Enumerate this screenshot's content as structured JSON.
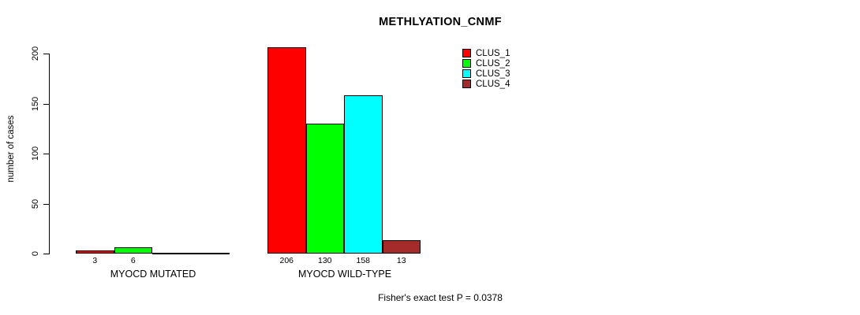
{
  "chart_data": {
    "type": "bar",
    "title": "METHLYATION_CNMF",
    "ylabel": "number of cases",
    "xlabel": "",
    "ylim": [
      0,
      200
    ],
    "yticks": [
      0,
      50,
      100,
      150,
      200
    ],
    "grid": false,
    "legend_position": "top-right",
    "groups": [
      "MYOCD MUTATED",
      "MYOCD WILD-TYPE"
    ],
    "series": [
      {
        "name": "CLUS_1",
        "color": "#ff0000",
        "values": [
          3,
          206
        ]
      },
      {
        "name": "CLUS_2",
        "color": "#00ff00",
        "values": [
          6,
          130
        ]
      },
      {
        "name": "CLUS_3",
        "color": "#00ffff",
        "values": [
          0,
          158
        ]
      },
      {
        "name": "CLUS_4",
        "color": "#a52a2a",
        "values": [
          0,
          13
        ]
      }
    ],
    "bar_value_labels": [
      [
        "3",
        "6",
        "",
        ""
      ],
      [
        "206",
        "130",
        "158",
        "13"
      ]
    ],
    "annotation": "Fisher's exact test P = 0.0378"
  }
}
